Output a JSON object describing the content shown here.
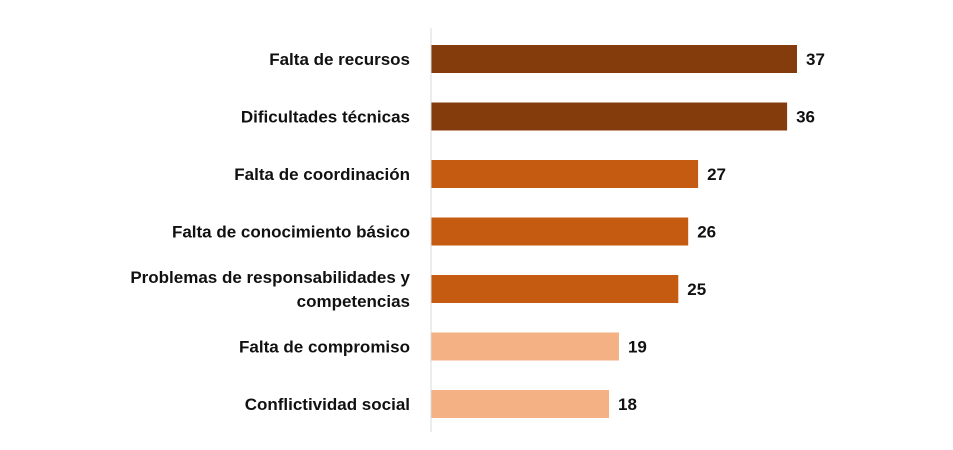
{
  "chart_data": {
    "type": "bar",
    "orientation": "horizontal",
    "categories": [
      "Falta de recursos",
      "Dificultades técnicas",
      "Falta de coordinación",
      "Falta de conocimiento básico",
      "Problemas de responsabilidades y competencias",
      "Falta de compromiso",
      "Conflictividad social"
    ],
    "category_lines": [
      [
        "Falta de recursos"
      ],
      [
        "Dificultades técnicas"
      ],
      [
        "Falta de coordinación"
      ],
      [
        "Falta de conocimiento básico"
      ],
      [
        "Problemas de responsabilidades y",
        "competencias"
      ],
      [
        "Falta de compromiso"
      ],
      [
        "Conflictividad social"
      ]
    ],
    "values": [
      37,
      36,
      27,
      26,
      25,
      19,
      18
    ],
    "value_labels": [
      "37",
      "36",
      "27",
      "26",
      "25",
      "19",
      "18"
    ],
    "bar_colors": [
      "#843c0c",
      "#843c0c",
      "#c55a11",
      "#c55a11",
      "#c55a11",
      "#f4b183",
      "#f4b183"
    ],
    "xlim": [
      0,
      37
    ],
    "grid": false,
    "legend": "none"
  }
}
